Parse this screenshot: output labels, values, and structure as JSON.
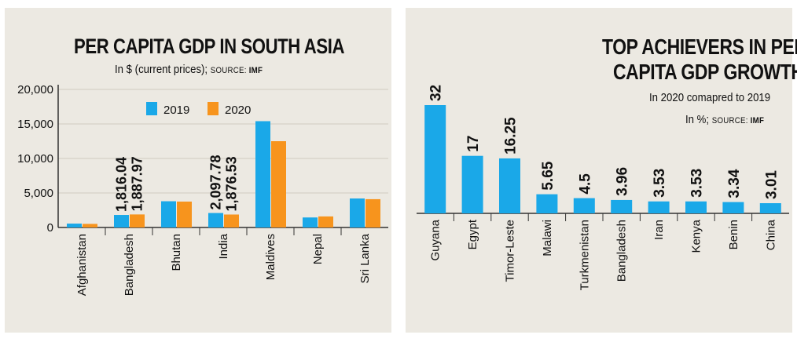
{
  "colors": {
    "blue": "#1aa8e8",
    "orange": "#f7941d",
    "grid": "#cfcac0",
    "axis": "#333333"
  },
  "chart_data": [
    {
      "type": "bar",
      "title": "PER CAPITA GDP IN SOUTH ASIA",
      "subtitle": "In $ (current prices);",
      "source_label": "SOURCE:",
      "source": "IMF",
      "categories": [
        "Afghanistan",
        "Bangladesh",
        "Bhutan",
        "India",
        "Maldives",
        "Nepal",
        "Sri Lanka"
      ],
      "series": [
        {
          "name": "2019",
          "color": "#1aa8e8",
          "values": [
            560,
            1816.04,
            3800,
            2097.78,
            15400,
            1450,
            4200
          ]
        },
        {
          "name": "2020",
          "color": "#f7941d",
          "values": [
            520,
            1887.97,
            3750,
            1876.53,
            12500,
            1600,
            4100
          ]
        }
      ],
      "data_labels": [
        {
          "category": "Bangladesh",
          "labels": [
            "1,816.04",
            "1,887.97"
          ]
        },
        {
          "category": "India",
          "labels": [
            "2,097.78",
            "1,876.53"
          ]
        }
      ],
      "yticks": [
        "0",
        "5,000",
        "10,000",
        "15,000",
        "20,000"
      ],
      "ytick_values": [
        0,
        5000,
        10000,
        15000,
        20000
      ],
      "ylim": [
        0,
        20000
      ],
      "grid": true,
      "legend": "top-left"
    },
    {
      "type": "bar",
      "title_lines": [
        "TOP ACHIEVERS IN PER",
        "CAPITA GDP GROWTH"
      ],
      "subtitle": "In 2020 comapred to 2019",
      "unit": "In %;",
      "source_label": "SOURCE:",
      "source": "IMF",
      "categories": [
        "Guyana",
        "Egypt",
        "Timor-Leste",
        "Malawi",
        "Turkmenistan",
        "Bangladesh",
        "Iran",
        "Kenya",
        "Benin",
        "China"
      ],
      "values": [
        32,
        17,
        16.25,
        5.65,
        4.5,
        3.96,
        3.53,
        3.53,
        3.34,
        3.01
      ],
      "value_labels": [
        "32",
        "17",
        "16.25",
        "5.65",
        "4.5",
        "3.96",
        "3.53",
        "3.53",
        "3.34",
        "3.01"
      ],
      "color": "#1aa8e8",
      "grid": false
    }
  ]
}
